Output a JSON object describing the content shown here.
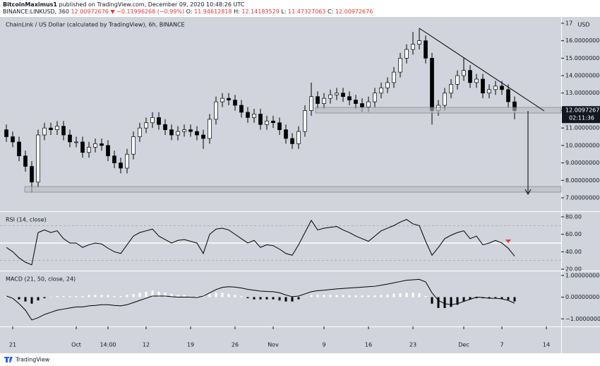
{
  "header": {
    "author": "BitcoinMaximus1",
    "published": "published on TradingView.com, December 09, 2020 10:48:26 UTC",
    "symbol": "BINANCE:LINKUSD, 360",
    "last": 12.00972676,
    "change": "−0.11996268 (−0.99%)",
    "ohlc": [
      {
        "label": "O:",
        "value": 11.94612818
      },
      {
        "label": "H:",
        "value": 12.14183529
      },
      {
        "label": "L:",
        "value": 11.47327063
      },
      {
        "label": "C:",
        "value": 12.00972676
      }
    ]
  },
  "footer": {
    "brand": "TradingView"
  },
  "chart_data": [
    {
      "type": "candlestick",
      "title": "ChainLink / US Dollar (calculated by TradingView), 6h, BINANCE",
      "unit": "USD",
      "categories": [
        null,
        "21",
        null,
        null,
        null,
        null,
        null,
        null,
        null,
        null,
        null,
        "Oct",
        null,
        null,
        null,
        null,
        "14:00",
        null,
        null,
        null,
        null,
        null,
        "12",
        null,
        null,
        null,
        null,
        null,
        null,
        "19",
        null,
        null,
        null,
        null,
        null,
        null,
        "26",
        null,
        null,
        null,
        null,
        null,
        "Nov",
        null,
        null,
        null,
        null,
        null,
        null,
        null,
        "9",
        null,
        null,
        null,
        null,
        null,
        null,
        "16",
        null,
        null,
        null,
        null,
        null,
        null,
        "23",
        null,
        null,
        null,
        null,
        null,
        null,
        null,
        "Dec",
        null,
        null,
        null,
        null,
        null,
        "7",
        null,
        null,
        null,
        null,
        null,
        null,
        "14",
        null,
        null
      ],
      "open": [
        10.9,
        10.5,
        10.2,
        9.4,
        8.8,
        7.9,
        10.6,
        11.0,
        10.9,
        11.1,
        10.6,
        10.2,
        10.2,
        9.6,
        9.9,
        10.1,
        10.0,
        9.4,
        9.0,
        8.7,
        9.5,
        10.5,
        11.0,
        11.3,
        11.6,
        11.2,
        10.9,
        10.6,
        10.8,
        10.9,
        10.8,
        10.6,
        10.4,
        11.5,
        12.5,
        12.7,
        12.6,
        12.3,
        11.9,
        11.6,
        11.8,
        11.2,
        11.4,
        11.3,
        10.9,
        10.4,
        10.1,
        10.8,
        12.0,
        12.8,
        12.4,
        12.7,
        12.9,
        13.0,
        12.8,
        12.6,
        12.4,
        12.2,
        12.5,
        13.0,
        13.3,
        13.6,
        14.2,
        15.0,
        15.5,
        15.8,
        16.0,
        15.0,
        12.0,
        12.3,
        13.0,
        13.5,
        14.0,
        14.3,
        13.6,
        13.8,
        13.0,
        13.2,
        13.4,
        13.2,
        12.5,
        null,
        null,
        null,
        null,
        null,
        null,
        null
      ],
      "high": [
        11.2,
        10.8,
        10.5,
        9.7,
        9.1,
        10.9,
        11.3,
        11.3,
        11.4,
        11.4,
        10.9,
        10.5,
        10.5,
        10.2,
        10.4,
        10.4,
        10.3,
        9.7,
        9.3,
        9.8,
        10.8,
        11.3,
        11.6,
        11.9,
        11.9,
        11.5,
        11.2,
        11.1,
        11.2,
        11.2,
        11.1,
        10.9,
        11.8,
        12.8,
        13.0,
        13.0,
        12.9,
        12.6,
        12.2,
        12.1,
        12.1,
        11.7,
        11.7,
        11.6,
        11.2,
        10.7,
        11.1,
        12.3,
        13.6,
        13.1,
        13.0,
        13.2,
        13.3,
        13.3,
        13.1,
        12.9,
        12.7,
        12.8,
        13.3,
        13.6,
        13.9,
        14.5,
        15.3,
        15.8,
        16.5,
        16.7,
        16.3,
        15.3,
        12.6,
        13.3,
        13.8,
        14.3,
        15.0,
        14.6,
        14.1,
        14.1,
        13.5,
        13.7,
        13.7,
        13.5,
        12.8,
        null,
        null,
        null,
        null,
        null,
        null,
        null
      ],
      "low": [
        10.2,
        9.9,
        9.1,
        8.5,
        7.3,
        7.6,
        10.3,
        10.6,
        10.6,
        10.3,
        9.9,
        9.9,
        9.3,
        9.3,
        9.6,
        9.7,
        9.1,
        8.7,
        8.4,
        8.4,
        9.2,
        10.2,
        10.7,
        11.0,
        10.9,
        10.6,
        10.3,
        10.3,
        10.5,
        10.5,
        10.3,
        9.8,
        10.1,
        11.2,
        12.2,
        12.3,
        12.0,
        11.6,
        11.3,
        11.3,
        10.9,
        10.9,
        11.0,
        10.6,
        10.1,
        9.8,
        9.8,
        10.5,
        11.7,
        12.1,
        12.1,
        12.4,
        12.6,
        12.5,
        12.3,
        12.1,
        11.9,
        11.9,
        12.2,
        12.7,
        13.0,
        13.3,
        13.9,
        14.7,
        15.2,
        15.5,
        14.7,
        11.2,
        11.7,
        12.0,
        12.7,
        13.2,
        13.7,
        13.3,
        13.3,
        12.7,
        12.7,
        12.9,
        12.9,
        12.2,
        11.5,
        null,
        null,
        null,
        null,
        null,
        null,
        null
      ],
      "close": [
        10.5,
        10.2,
        9.4,
        8.8,
        7.9,
        10.6,
        11.0,
        10.9,
        11.1,
        10.6,
        10.2,
        10.2,
        9.6,
        9.9,
        10.1,
        10.0,
        9.4,
        9.0,
        8.7,
        9.5,
        10.5,
        11.0,
        11.3,
        11.6,
        11.2,
        10.9,
        10.6,
        10.8,
        10.9,
        10.8,
        10.6,
        10.4,
        11.5,
        12.5,
        12.7,
        12.6,
        12.3,
        11.9,
        11.6,
        11.8,
        11.2,
        11.4,
        11.3,
        10.9,
        10.4,
        10.1,
        10.8,
        12.0,
        12.8,
        12.4,
        12.7,
        12.9,
        13.0,
        12.8,
        12.6,
        12.4,
        12.2,
        12.5,
        13.0,
        13.3,
        13.6,
        14.2,
        15.0,
        15.5,
        15.8,
        16.0,
        15.0,
        12.0,
        12.3,
        13.0,
        13.5,
        14.0,
        14.3,
        13.6,
        13.8,
        13.0,
        13.2,
        13.4,
        13.2,
        12.5,
        12.0,
        null,
        null,
        null,
        null,
        null,
        null,
        null
      ],
      "up_color": "#ffffff",
      "down_color": "#000000",
      "ylim": [
        6.27,
        17.24
      ],
      "yticks": [
        {
          "value": 7,
          "label": "7.00000000"
        },
        {
          "value": 8,
          "label": "8.00000000"
        },
        {
          "value": 9,
          "label": "9.00000000"
        },
        {
          "value": 10,
          "label": "10.00000000"
        },
        {
          "value": 11,
          "label": "11.00000000"
        },
        {
          "value": 12,
          "label": "12.00000000"
        },
        {
          "value": 13,
          "label": "13.00000000"
        },
        {
          "value": 14,
          "label": "14.00000000"
        },
        {
          "value": 15,
          "label": "15.00000000"
        },
        {
          "value": 16,
          "label": "16.00000000"
        },
        {
          "value": 17,
          "label": "17."
        }
      ],
      "last_value": 12.00972676,
      "countdown": "02:11:36"
    },
    {
      "type": "line",
      "title": "RSI (14, close)",
      "color": "#000000",
      "values": [
        45,
        40,
        33,
        28,
        25,
        62,
        65,
        62,
        64,
        55,
        50,
        50,
        45,
        48,
        50,
        49,
        44,
        40,
        38,
        48,
        58,
        62,
        64,
        66,
        58,
        54,
        50,
        53,
        54,
        52,
        50,
        38,
        60,
        66,
        67,
        65,
        60,
        55,
        50,
        53,
        45,
        48,
        47,
        43,
        38,
        36,
        48,
        62,
        76,
        65,
        67,
        68,
        69,
        65,
        62,
        58,
        55,
        52,
        58,
        64,
        67,
        70,
        74,
        77,
        72,
        70,
        52,
        36,
        45,
        55,
        59,
        62,
        64,
        55,
        58,
        48,
        50,
        53,
        50,
        44,
        35,
        null,
        null,
        null,
        null,
        null,
        null,
        null
      ],
      "levels": [
        30,
        50,
        70
      ],
      "ylim": [
        18.4,
        85.6
      ],
      "yticks": [
        {
          "value": 20,
          "label": "20.00"
        },
        {
          "value": 40,
          "label": "40.00"
        },
        {
          "value": 60,
          "label": "60.00"
        },
        {
          "value": 80,
          "label": "80.00"
        }
      ]
    },
    {
      "type": "macd",
      "title": "MACD (21, 50, close, 24)",
      "color": "#000000",
      "up_color": "#ffffff",
      "down_color": "#000000",
      "values": [
        0.05,
        -0.05,
        -0.3,
        -0.6,
        -1.05,
        -0.95,
        -0.8,
        -0.7,
        -0.6,
        -0.55,
        -0.5,
        -0.45,
        -0.45,
        -0.4,
        -0.38,
        -0.35,
        -0.35,
        -0.38,
        -0.4,
        -0.35,
        -0.25,
        -0.15,
        -0.05,
        0.05,
        0.05,
        0.05,
        0.02,
        0.0,
        0.0,
        0.0,
        -0.02,
        0.05,
        0.2,
        0.35,
        0.45,
        0.48,
        0.46,
        0.42,
        0.36,
        0.32,
        0.28,
        0.26,
        0.25,
        0.2,
        0.1,
        0.02,
        0.05,
        0.15,
        0.25,
        0.3,
        0.32,
        0.35,
        0.38,
        0.4,
        0.42,
        0.44,
        0.46,
        0.48,
        0.5,
        0.55,
        0.6,
        0.66,
        0.72,
        0.78,
        0.8,
        0.82,
        0.7,
        0.2,
        -0.15,
        -0.3,
        -0.35,
        -0.3,
        -0.2,
        -0.1,
        0.0,
        -0.02,
        -0.05,
        -0.05,
        -0.08,
        -0.15,
        -0.28,
        null,
        null,
        null,
        null,
        null,
        null,
        null
      ],
      "histogram": [
        0.05,
        0.0,
        -0.1,
        -0.2,
        -0.3,
        -0.15,
        -0.05,
        0.0,
        0.05,
        0.05,
        0.05,
        0.05,
        0.05,
        0.1,
        0.1,
        0.1,
        0.1,
        0.05,
        0.05,
        0.1,
        0.15,
        0.2,
        0.25,
        0.3,
        0.25,
        0.2,
        0.15,
        0.1,
        0.1,
        0.05,
        0.05,
        0.1,
        0.15,
        0.2,
        0.2,
        0.15,
        0.1,
        0.05,
        -0.05,
        -0.1,
        -0.1,
        -0.1,
        -0.1,
        -0.15,
        -0.2,
        -0.2,
        -0.1,
        0.0,
        0.1,
        0.1,
        0.1,
        0.1,
        0.1,
        0.1,
        0.08,
        0.08,
        0.08,
        0.08,
        0.08,
        0.1,
        0.12,
        0.15,
        0.18,
        0.2,
        0.2,
        0.18,
        0.05,
        -0.3,
        -0.5,
        -0.5,
        -0.45,
        -0.35,
        -0.2,
        -0.1,
        -0.05,
        -0.05,
        -0.05,
        -0.05,
        -0.08,
        -0.12,
        -0.2,
        null,
        null,
        null,
        null,
        null,
        null,
        null
      ],
      "ylim": [
        -1.35,
        1.19
      ],
      "yticks": [
        {
          "value": -1,
          "label": "−1.00000000"
        },
        {
          "value": 0,
          "label": "0.00000000"
        },
        {
          "value": 1,
          "label": "1.00000000"
        }
      ]
    }
  ]
}
